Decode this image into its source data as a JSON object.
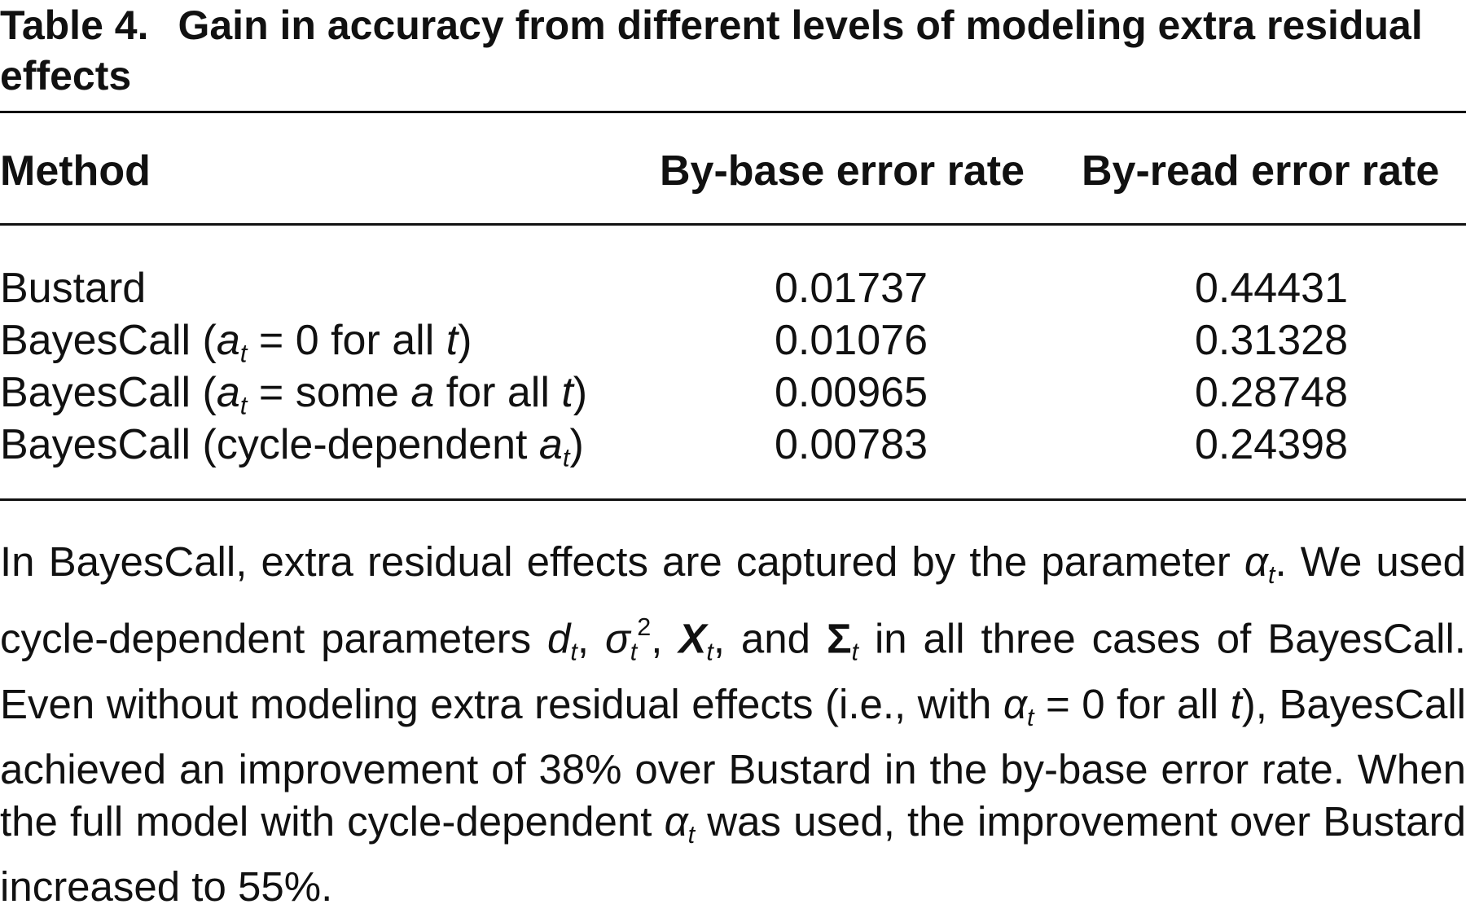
{
  "title": {
    "label": "Table 4.",
    "text": "Gain in accuracy from different levels of modeling extra residual effects"
  },
  "table": {
    "header": [
      "Method",
      "By-base error rate",
      "By-read error rate"
    ],
    "rows": [
      [
        [
          "Bustard"
        ],
        "0.01737",
        "0.44431"
      ],
      [
        [
          "BayesCall (",
          "a",
          "t",
          " = 0 for all ",
          "t",
          ")"
        ],
        "0.01076",
        "0.31328"
      ],
      [
        [
          "BayesCall (",
          "a",
          "t",
          " = some ",
          "a",
          " for all ",
          "t",
          ")"
        ],
        "0.00965",
        "0.28748"
      ],
      [
        [
          "BayesCall (cycle-dependent ",
          "a",
          "t",
          ")"
        ],
        "0.00783",
        "0.24398"
      ]
    ]
  },
  "note": [
    "In BayesCall, extra residual effects are captured by the parameter ",
    "α",
    "t",
    ". We used cycle-dependent parameters ",
    "d",
    "t",
    ", ",
    "σ",
    "t",
    "2",
    ", ",
    "X",
    "t",
    ", and ",
    "Σ",
    "t",
    " in all three cases of BayesCall. Even without modeling extra residual effects (i.e., with ",
    "α",
    "t",
    " = 0 for all ",
    "t",
    "), BayesCall achieved an improvement of 38% over Bustard in the by-base error rate. When the full model with cycle-dependent ",
    "α",
    "t",
    " was used, the improvement over Bustard increased to 55%."
  ]
}
